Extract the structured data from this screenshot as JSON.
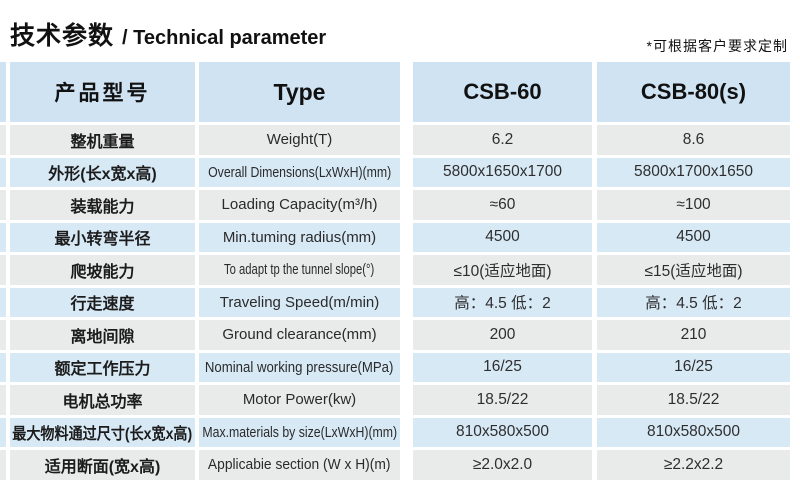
{
  "header": {
    "title_cn": "技术参数",
    "title_en": "/ Technical parameter",
    "note": "*可根据客户要求定制"
  },
  "table": {
    "columns": {
      "product_cn": "产品型号",
      "product_en": "Type",
      "model_1": "CSB-60",
      "model_2": "CSB-80(s)"
    },
    "colors": {
      "header_bg": "#cfe3f3",
      "row_blue": "#d8e9f6",
      "row_gray": "#e9eaea"
    },
    "rows": [
      {
        "cn": "整机重量",
        "en": "Weight(T)",
        "csb60": "6.2",
        "csb80": "8.6"
      },
      {
        "cn": "外形(长x宽x高)",
        "en": "Overall Dimensions(LxWxH)(mm)",
        "csb60": "5800x1650x1700",
        "csb80": "5800x1700x1650"
      },
      {
        "cn": "装载能力",
        "en": "Loading Capacity(m³/h)",
        "csb60": "≈60",
        "csb80": "≈100"
      },
      {
        "cn": "最小转弯半径",
        "en": "Min.tuming radius(mm)",
        "csb60": "4500",
        "csb80": "4500"
      },
      {
        "cn": "爬坡能力",
        "en": "To adapt tp the tunnel slope(°)",
        "csb60": "≤10(适应地面)",
        "csb80": "≤15(适应地面)"
      },
      {
        "cn": "行走速度",
        "en": "Traveling Speed(m/min)",
        "csb60": "高：4.5 低：2",
        "csb80": "高：4.5 低：2"
      },
      {
        "cn": "离地间隙",
        "en": "Ground clearance(mm)",
        "csb60": "200",
        "csb80": "210"
      },
      {
        "cn": "额定工作压力",
        "en": "Nominal working pressure(MPa)",
        "csb60": "16/25",
        "csb80": "16/25"
      },
      {
        "cn": "电机总功率",
        "en": "Motor Power(kw)",
        "csb60": "18.5/22",
        "csb80": "18.5/22"
      },
      {
        "cn": "最大物料通过尺寸(长x宽x高)",
        "en": "Max.materials by size(LxWxH)(mm)",
        "csb60": "810x580x500",
        "csb80": "810x580x500"
      },
      {
        "cn": "适用断面(宽x高)",
        "en": "Applicabie section (W x H)(m)",
        "csb60": "≥2.0x2.0",
        "csb80": "≥2.2x2.2"
      }
    ]
  }
}
